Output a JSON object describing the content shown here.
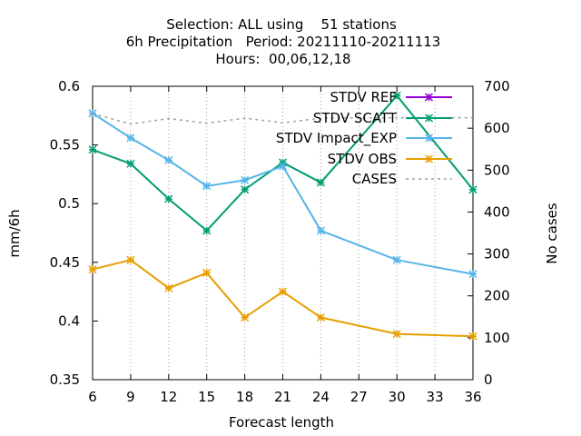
{
  "chart_data": {
    "type": "line",
    "title_lines": [
      "Selection: ALL using    51 stations",
      "6h Precipitation   Period: 20211110-20211113",
      "Hours:  00,06,12,18"
    ],
    "xlabel": "Forecast length",
    "ylabel": "mm/6h",
    "y2label": "No cases",
    "xlim": [
      6,
      36
    ],
    "ylim": [
      0.35,
      0.6
    ],
    "y2lim": [
      0,
      700
    ],
    "xticks": [
      6,
      9,
      12,
      15,
      18,
      21,
      24,
      27,
      30,
      33,
      36
    ],
    "yticks": [
      0.35,
      0.4,
      0.45,
      0.5,
      0.55,
      0.6
    ],
    "y2ticks": [
      0,
      100,
      200,
      300,
      400,
      500,
      600,
      700
    ],
    "grid": "vertical dotted",
    "legend_position": "top-right",
    "series": [
      {
        "name": "STDV REF",
        "axis": "y",
        "color": "#9400d3",
        "marker": "star",
        "x": [],
        "values": []
      },
      {
        "name": "STDV SCATT",
        "axis": "y",
        "color": "#009e73",
        "marker": "star",
        "x": [
          6,
          9,
          12,
          15,
          18,
          21,
          24,
          30,
          36
        ],
        "values": [
          0.546,
          0.534,
          0.504,
          0.477,
          0.512,
          0.535,
          0.518,
          0.592,
          0.512
        ]
      },
      {
        "name": "STDV Impact_EXP",
        "axis": "y",
        "color": "#56b4e9",
        "marker": "star",
        "x": [
          6,
          9,
          12,
          15,
          18,
          21,
          24,
          30,
          36
        ],
        "values": [
          0.577,
          0.556,
          0.537,
          0.515,
          0.52,
          0.532,
          0.477,
          0.452,
          0.44
        ]
      },
      {
        "name": "STDV OBS",
        "axis": "y",
        "color": "#e69f00",
        "marker": "star",
        "x": [
          6,
          9,
          12,
          15,
          18,
          21,
          24,
          30,
          36
        ],
        "values": [
          0.444,
          0.452,
          0.428,
          0.441,
          0.403,
          0.425,
          0.403,
          0.389,
          0.387
        ]
      },
      {
        "name": "CASES",
        "axis": "y2",
        "color": "#a0a0a0",
        "dash": true,
        "x": [
          6,
          9,
          12,
          15,
          18,
          21,
          24,
          30,
          36
        ],
        "values": [
          635,
          610,
          623,
          612,
          624,
          613,
          624,
          625,
          625
        ]
      }
    ]
  }
}
